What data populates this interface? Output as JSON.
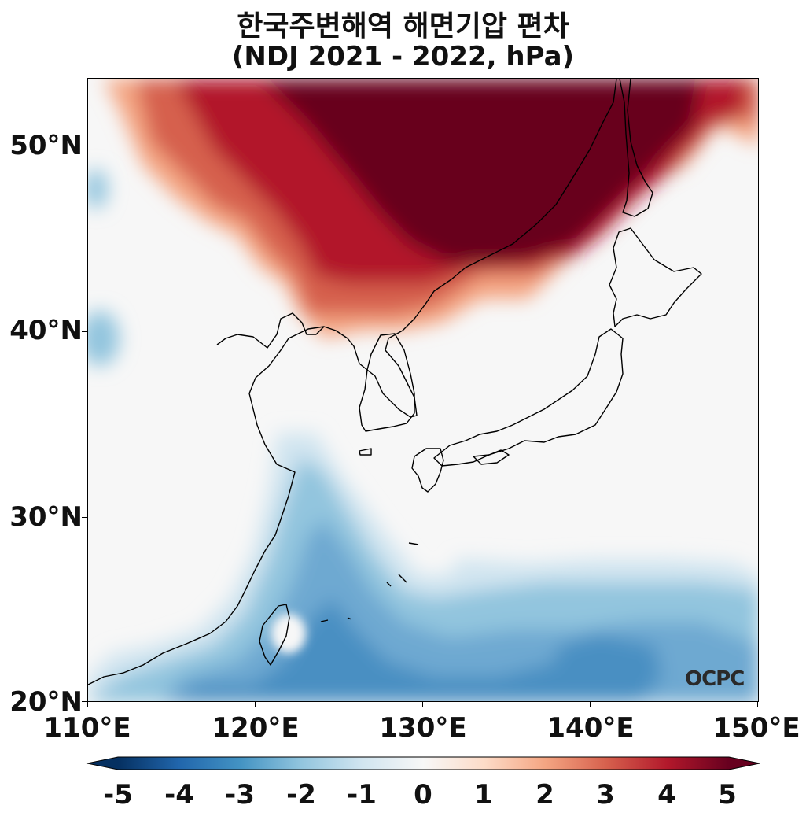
{
  "title": {
    "line1": "한국주변해역 해면기압 편차",
    "line2": "(NDJ 2021 - 2022, hPa)"
  },
  "map": {
    "extent_lon": [
      110,
      150
    ],
    "extent_lat": [
      20,
      53.5
    ],
    "lat_labels": [
      "50°N",
      "40°N",
      "30°N",
      "20°N"
    ],
    "lon_labels": [
      "110°E",
      "120°E",
      "130°E",
      "140°E",
      "150°E"
    ],
    "logo": "OCPC"
  },
  "colorbar": {
    "ticks": [
      "-5",
      "-4",
      "-3",
      "-2",
      "-1",
      "0",
      "1",
      "2",
      "3",
      "4",
      "5"
    ],
    "colormap": "RdBu_r",
    "min": -5,
    "max": 5,
    "colors": [
      "#053061",
      "#2166ac",
      "#4393c3",
      "#92c5de",
      "#d1e5f0",
      "#f7f7f7",
      "#fddbc7",
      "#f4a582",
      "#d6604d",
      "#b2182b",
      "#67001f"
    ]
  }
}
